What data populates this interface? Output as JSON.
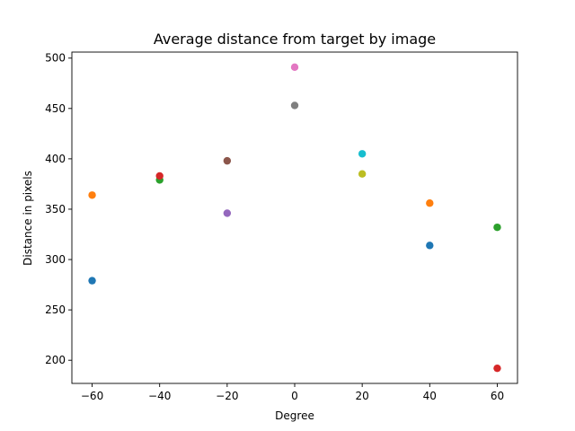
{
  "chart_data": {
    "type": "scatter",
    "title": "Average distance from target by image",
    "xlabel": "Degree",
    "ylabel": "Distance in pixels",
    "xlim": [
      -66,
      66
    ],
    "ylim": [
      177,
      506
    ],
    "xticks": [
      -60,
      -40,
      -20,
      0,
      20,
      40,
      60
    ],
    "xtick_labels": [
      "−60",
      "−40",
      "−20",
      "0",
      "20",
      "40",
      "60"
    ],
    "yticks": [
      200,
      250,
      300,
      350,
      400,
      450,
      500
    ],
    "ytick_labels": [
      "200",
      "250",
      "300",
      "350",
      "400",
      "450",
      "500"
    ],
    "grid": false,
    "legend": "none",
    "points": [
      {
        "x": -60,
        "y": 279,
        "color": "#1f77b4"
      },
      {
        "x": -60,
        "y": 364,
        "color": "#ff7f0e"
      },
      {
        "x": -40,
        "y": 379,
        "color": "#2ca02c"
      },
      {
        "x": -40,
        "y": 383,
        "color": "#d62728"
      },
      {
        "x": -20,
        "y": 346,
        "color": "#9467bd"
      },
      {
        "x": -20,
        "y": 398,
        "color": "#8c564b"
      },
      {
        "x": 0,
        "y": 491,
        "color": "#e377c2"
      },
      {
        "x": 0,
        "y": 453,
        "color": "#7f7f7f"
      },
      {
        "x": 20,
        "y": 385,
        "color": "#bcbd22"
      },
      {
        "x": 20,
        "y": 405,
        "color": "#17becf"
      },
      {
        "x": 40,
        "y": 314,
        "color": "#1f77b4"
      },
      {
        "x": 40,
        "y": 356,
        "color": "#ff7f0e"
      },
      {
        "x": 60,
        "y": 332,
        "color": "#2ca02c"
      },
      {
        "x": 60,
        "y": 192,
        "color": "#d62728"
      }
    ]
  }
}
